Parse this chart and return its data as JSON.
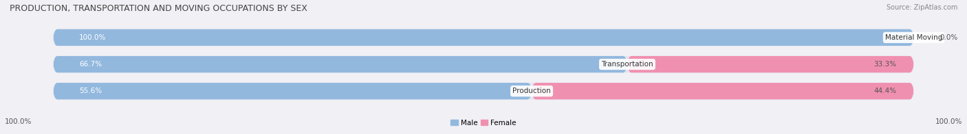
{
  "title": "PRODUCTION, TRANSPORTATION AND MOVING OCCUPATIONS BY SEX",
  "source": "Source: ZipAtlas.com",
  "categories": [
    "Material Moving",
    "Transportation",
    "Production"
  ],
  "male_values": [
    100.0,
    66.7,
    55.6
  ],
  "female_values": [
    0.0,
    33.3,
    44.4
  ],
  "male_color": "#92b8de",
  "female_color": "#f090b0",
  "bar_bg_color": "#e4e4ec",
  "fig_bg_color": "#f0f0f5",
  "bar_height": 0.62,
  "figsize": [
    14.06,
    1.96
  ],
  "dpi": 100,
  "legend_male": "Male",
  "legend_female": "Female",
  "bottom_left_label": "100.0%",
  "bottom_right_label": "100.0%",
  "title_fontsize": 9,
  "source_fontsize": 7,
  "bar_label_fontsize": 7.5,
  "cat_label_fontsize": 7.5
}
